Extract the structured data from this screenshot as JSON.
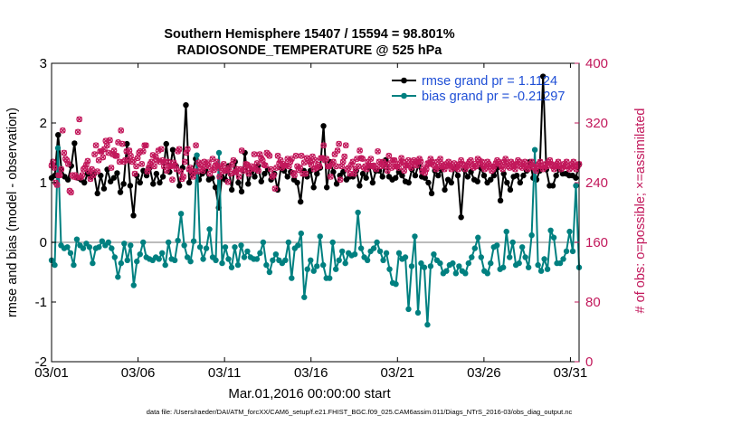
{
  "chart_data": {
    "type": "line",
    "title": [
      "Southern Hemisphere 15407 / 15594 = 98.801%",
      "RADIOSONDE_TEMPERATURE @ 525 hPa"
    ],
    "xlabel": "Mar.01,2016 00:00:00 start",
    "ylabel_left": "rmse and bias (model - observation)",
    "ylabel_right": "# of obs: o=possible; ×=assimilated",
    "footnote": "data file: /Users/raeder/DAI/ATM_forcXX/CAM6_setup/f.e21.FHIST_BGC.f09_025.CAM6assim.011/Diags_NTrS_2016-03/obs_diag_output.nc",
    "x_ticks": [
      0,
      5,
      10,
      15,
      20,
      25,
      30
    ],
    "x_tick_labels": [
      "03/01",
      "03/06",
      "03/11",
      "03/16",
      "03/21",
      "03/26",
      "03/31"
    ],
    "xlim": [
      0,
      30.5
    ],
    "ylim_left": [
      -2,
      3
    ],
    "y_ticks_left": [
      -2,
      -1,
      0,
      1,
      2,
      3
    ],
    "ylim_right": [
      0,
      400
    ],
    "y_ticks_right": [
      0,
      80,
      160,
      240,
      320,
      400
    ],
    "legend": [
      "rmse grand pr = 1.1124",
      "bias grand pr = -0.21297"
    ],
    "colors": {
      "rmse": "#000000",
      "bias": "#008080",
      "obs": "#c2185b",
      "zero": "#bbbbbb"
    },
    "series": [
      {
        "name": "rmse",
        "axis": "left",
        "values": [
          1.08,
          1.12,
          1.8,
          1.22,
          1.1,
          1.05,
          1.28,
          1.66,
          1.08,
          1.05,
          1.0,
          1.15,
          1.1,
          1.15,
          0.82,
          1.12,
          0.9,
          1.22,
          1.02,
          1.08,
          1.16,
          0.84,
          0.98,
          1.65,
          0.95,
          0.45,
          1.12,
          1.0,
          1.2,
          1.12,
          1.25,
          0.98,
          1.15,
          1.0,
          1.1,
          1.65,
          1.18,
          1.55,
          1.28,
          0.95,
          1.25,
          2.3,
          1.0,
          1.15,
          1.4,
          1.05,
          1.15,
          1.2,
          1.05,
          1.08,
          0.92,
          0.58,
          1.1,
          1.05,
          1.28,
          0.88,
          1.35,
          1.0,
          0.85,
          1.5,
          0.98,
          1.18,
          1.1,
          1.28,
          1.02,
          1.15,
          1.22,
          1.05,
          1.15,
          0.88,
          1.25,
          1.2,
          1.1,
          1.18,
          1.05,
          1.0,
          0.68,
          1.2,
          1.1,
          1.2,
          0.92,
          1.15,
          1.25,
          1.95,
          0.92,
          1.35,
          1.18,
          0.98,
          1.12,
          1.18,
          1.05,
          1.1,
          1.1,
          1.2,
          0.95,
          1.15,
          1.08,
          1.28,
          1.0,
          1.2,
          1.2,
          1.1,
          1.38,
          1.1,
          1.05,
          1.08,
          1.18,
          1.12,
          1.02,
          1.0,
          1.22,
          1.12,
          1.3,
          1.1,
          1.08,
          1.0,
          0.82,
          1.2,
          1.12,
          1.22,
          0.88,
          1.05,
          1.0,
          1.25,
          1.12,
          0.42,
          1.22,
          1.1,
          1.18,
          1.05,
          1.02,
          1.25,
          1.12,
          1.0,
          1.05,
          1.12,
          1.25,
          0.7,
          1.15,
          1.0,
          0.88,
          1.1,
          1.12,
          1.0,
          1.12,
          1.2,
          1.35,
          1.08,
          1.05,
          1.2,
          2.78,
          1.22,
          0.95,
          0.95,
          1.12,
          1.22,
          1.15,
          1.15,
          1.12,
          1.12,
          1.08,
          1.3
        ]
      },
      {
        "name": "bias",
        "axis": "left",
        "values": [
          -0.3,
          -0.38,
          1.58,
          -0.05,
          -0.1,
          -0.08,
          -0.18,
          -0.38,
          0.05,
          -0.05,
          -0.1,
          -0.02,
          -0.08,
          -0.35,
          -0.1,
          -0.08,
          0.02,
          -0.05,
          0.0,
          -0.1,
          -0.25,
          -0.58,
          -0.35,
          -0.02,
          -0.3,
          -0.05,
          -0.72,
          -0.32,
          -0.2,
          0.0,
          -0.25,
          -0.28,
          -0.3,
          -0.25,
          -0.28,
          -0.18,
          -0.38,
          0.0,
          -0.28,
          -0.3,
          0.03,
          0.48,
          -0.05,
          -0.25,
          -0.32,
          0.02,
          1.46,
          -0.08,
          -0.28,
          -0.1,
          0.22,
          -0.25,
          -0.3,
          1.5,
          -0.35,
          -0.08,
          -0.28,
          -0.42,
          -0.08,
          -0.38,
          -0.05,
          -0.25,
          -0.15,
          -0.25,
          -0.28,
          -0.28,
          -0.18,
          0.0,
          -0.38,
          -0.5,
          -0.3,
          -0.2,
          -0.3,
          -0.35,
          -0.3,
          0.0,
          -0.6,
          -0.1,
          -0.05,
          0.15,
          -0.92,
          -0.45,
          -0.3,
          -0.48,
          -0.4,
          0.1,
          -0.38,
          -0.6,
          -0.6,
          0.0,
          -0.45,
          -0.3,
          -0.15,
          -0.35,
          -0.18,
          -0.22,
          -0.2,
          0.5,
          -0.1,
          -0.25,
          -0.3,
          -0.15,
          -0.1,
          0.0,
          -0.15,
          -0.3,
          -0.18,
          -0.45,
          -0.68,
          -0.7,
          -0.18,
          -0.28,
          -0.25,
          -1.12,
          -0.4,
          0.1,
          -1.18,
          -0.35,
          -0.42,
          -1.38,
          -0.4,
          -0.2,
          -0.3,
          -0.35,
          -0.52,
          -0.48,
          -0.38,
          -0.35,
          -0.52,
          -0.4,
          -0.48,
          -0.52,
          -0.35,
          -0.25,
          -0.1,
          0.08,
          -0.25,
          -0.48,
          -0.52,
          -0.35,
          -0.08,
          -0.05,
          -0.45,
          -0.42,
          0.18,
          -0.25,
          0.0,
          -0.38,
          -0.35,
          -0.08,
          -0.25,
          -0.42,
          0.12,
          1.55,
          -0.38,
          -0.48,
          -0.28,
          -0.45,
          0.2,
          0.08,
          -0.35,
          -0.35,
          -0.28,
          -0.15,
          0.18,
          -0.15,
          0.95,
          -0.42
        ]
      },
      {
        "name": "obs_possible",
        "axis": "right",
        "marker": "o",
        "values": [
          263,
          268,
          260,
          240,
          237,
          250,
          250,
          258,
          310,
          280,
          272,
          270,
          265,
          229,
          227,
          250,
          248,
          250,
          247,
          308,
          325,
          247,
          250,
          258,
          260,
          264,
          269,
          255,
          245,
          258,
          250,
          278,
          290,
          255,
          270,
          282,
          282,
          274,
          285,
          296,
          290,
          280,
          297,
          260,
          278,
          283,
          276,
          276,
          294,
          268,
          310,
          292,
          268,
          270,
          282,
          270,
          283,
          276,
          268,
          270,
          252,
          262,
          273,
          280,
          282,
          265,
          282,
          290,
          290,
          255,
          260,
          265,
          268,
          277,
          262,
          275,
          270,
          283,
          268,
          285,
          270,
          262,
          268,
          256,
          268,
          262,
          262,
          244,
          267,
          263,
          258,
          282,
          285,
          255,
          245,
          248,
          268,
          280,
          285,
          258,
          260,
          255,
          248,
          255,
          290,
          255,
          267,
          264,
          259,
          256,
          268,
          262,
          265,
          267,
          252,
          260,
          272,
          257,
          263,
          268,
          260,
          248,
          262,
          255,
          265,
          256,
          257,
          241,
          260,
          252,
          264,
          270,
          254,
          255,
          258,
          248,
          258,
          283,
          256,
          258,
          265,
          264,
          252,
          258,
          262,
          260,
          278,
          258,
          266,
          256,
          278,
          273,
          270,
          264,
          263,
          280,
          278,
          276,
          258,
          248,
          250,
          232,
          260,
          276,
          266,
          270,
          260,
          265,
          263,
          263,
          272,
          262,
          268,
          272,
          253,
          250,
          276,
          262,
          257,
          260,
          276,
          252,
          267,
          252,
          273,
          271,
          268,
          264,
          275,
          258,
          270,
          260,
          264,
          262,
          273,
          273,
          290,
          270,
          272,
          262,
          262,
          248,
          265,
          268,
          278,
          262,
          283,
          292,
          244,
          262,
          268,
          275,
          290,
          258,
          260,
          252,
          264,
          268,
          252,
          258,
          272,
          262,
          283,
          273,
          272,
          260,
          262,
          258,
          268,
          263,
          272,
          262,
          263,
          260,
          258,
          282,
          268,
          262,
          265,
          268,
          265,
          262,
          256,
          276,
          266,
          260,
          270,
          270,
          262,
          262,
          260,
          266,
          273,
          268,
          256,
          263,
          263,
          270,
          263,
          260,
          268,
          270,
          265,
          263,
          268,
          272,
          268,
          255,
          260,
          253,
          258,
          266,
          265,
          272,
          268,
          264,
          262,
          258,
          268,
          261,
          272,
          265,
          262,
          258,
          262,
          266,
          268,
          263,
          258,
          260,
          266,
          260,
          262,
          258,
          265,
          270,
          265,
          263,
          258,
          262,
          265,
          268,
          270,
          262,
          260,
          265,
          262,
          272,
          270,
          265,
          268,
          262,
          258,
          260,
          268,
          265,
          262,
          256,
          258,
          262,
          266,
          270,
          268,
          265,
          262,
          258,
          268,
          272,
          265,
          262,
          260,
          268,
          265,
          262,
          258,
          265,
          270,
          268,
          262,
          260,
          265,
          268,
          262,
          258,
          260,
          265,
          268,
          262,
          260,
          256,
          262,
          265,
          268,
          262,
          258,
          260,
          265,
          262,
          268,
          270,
          265,
          262,
          258,
          262,
          265,
          268,
          262,
          258,
          260,
          265,
          262,
          268,
          262,
          258,
          260,
          265,
          268,
          262,
          258,
          262,
          265
        ]
      },
      {
        "name": "obs_assimilated",
        "axis": "right",
        "marker": "x",
        "values": [
          263,
          268,
          260,
          240,
          237,
          250,
          250,
          258,
          310,
          280,
          272,
          270,
          265,
          229,
          227,
          250,
          248,
          250,
          247,
          308,
          325,
          247,
          250,
          258,
          260,
          264,
          269,
          255,
          245,
          258,
          250,
          278,
          290,
          255,
          270,
          282,
          282,
          274,
          285,
          296,
          290,
          280,
          297,
          260,
          278,
          283,
          276,
          276,
          294,
          268,
          310,
          292,
          268,
          270,
          282,
          270,
          283,
          276,
          268,
          270,
          252,
          262,
          273,
          280,
          282,
          265,
          282,
          290,
          290,
          255,
          260,
          265,
          268,
          277,
          262,
          275,
          270,
          283,
          268,
          285,
          270,
          262,
          268,
          256,
          268,
          262,
          262,
          244,
          267,
          263,
          258,
          282,
          285,
          255,
          245,
          248,
          268,
          280,
          285,
          258,
          260,
          255,
          248,
          255,
          290,
          255,
          267,
          264,
          259,
          256,
          268,
          262,
          265,
          267,
          252,
          260,
          272,
          257,
          263,
          268,
          260,
          248,
          262,
          255,
          265,
          256,
          257,
          241,
          260,
          252,
          264,
          270,
          254,
          255,
          258,
          248,
          258,
          283,
          256,
          258,
          265,
          264,
          252,
          258,
          262,
          260,
          278,
          258,
          266,
          256,
          278,
          273,
          270,
          264,
          263,
          280,
          278,
          276,
          258,
          248,
          250,
          232,
          260,
          276,
          266,
          270,
          260,
          265,
          263,
          263,
          272,
          262,
          268,
          272,
          253,
          250,
          276,
          262,
          257,
          260,
          276,
          252,
          267,
          252,
          273,
          271,
          268,
          264,
          275,
          258,
          270,
          260,
          264,
          262,
          273,
          273,
          290,
          270,
          272,
          262,
          262,
          248,
          265,
          268,
          278,
          262,
          283,
          292,
          244,
          262,
          268,
          275,
          290,
          258,
          260,
          252,
          264,
          268,
          252,
          258,
          272,
          262,
          283,
          273,
          272,
          260,
          262,
          258,
          268,
          263,
          272,
          262,
          263,
          260,
          258,
          282,
          268,
          262,
          265,
          268,
          265,
          262,
          256,
          276,
          266,
          260,
          270,
          270,
          262,
          262,
          260,
          266,
          273,
          268,
          256,
          263,
          263,
          270,
          263,
          260,
          268,
          270,
          265,
          263,
          268,
          272,
          268,
          255,
          260,
          253,
          258,
          266,
          265,
          272,
          268,
          264,
          262,
          258,
          268,
          261,
          272,
          265,
          262,
          258,
          262,
          266,
          268,
          263,
          258,
          260,
          266,
          260,
          262,
          258,
          265,
          270,
          265,
          263,
          258,
          262,
          265,
          268,
          270,
          262,
          260,
          265,
          262,
          272,
          270,
          265,
          268,
          262,
          258,
          260,
          268,
          265,
          262,
          256,
          258,
          262,
          266,
          270,
          268,
          265,
          262,
          258,
          268,
          272,
          265,
          262,
          260,
          268,
          265,
          262,
          258,
          265,
          270,
          268,
          262,
          260,
          265,
          268,
          262,
          258,
          260,
          265,
          268,
          262,
          260,
          256,
          262,
          265,
          268,
          262,
          258,
          260,
          265,
          262,
          268,
          270,
          265,
          262,
          258,
          262,
          265,
          268,
          262,
          258,
          260,
          265,
          262,
          268,
          262,
          258,
          260,
          265,
          268,
          262,
          258,
          262,
          265
        ]
      }
    ]
  }
}
